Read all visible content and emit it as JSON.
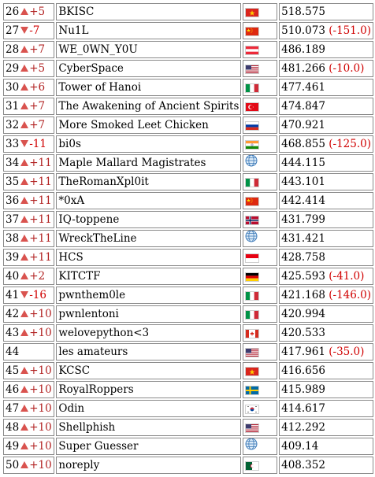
{
  "rows": [
    {
      "rank": "26",
      "dir": "up",
      "delta": "+5",
      "team": "BKISC",
      "flag": "vn-flag",
      "score": "518.575",
      "diff": ""
    },
    {
      "rank": "27",
      "dir": "down",
      "delta": "-7",
      "team": "Nu1L",
      "flag": "cn-flag",
      "score": "510.073",
      "diff": "(-151.0)"
    },
    {
      "rank": "28",
      "dir": "up",
      "delta": "+7",
      "team": "WE_0WN_Y0U",
      "flag": "at-flag",
      "score": "486.189",
      "diff": ""
    },
    {
      "rank": "29",
      "dir": "up",
      "delta": "+5",
      "team": "CyberSpace",
      "flag": "us-flag",
      "score": "481.266",
      "diff": "(-10.0)"
    },
    {
      "rank": "30",
      "dir": "up",
      "delta": "+6",
      "team": "Tower of Hanoi",
      "flag": "it-flag",
      "score": "477.461",
      "diff": ""
    },
    {
      "rank": "31",
      "dir": "up",
      "delta": "+7",
      "team": "The Awakening of Ancient Spirits",
      "flag": "tr-flag",
      "score": "474.847",
      "diff": ""
    },
    {
      "rank": "32",
      "dir": "up",
      "delta": "+7",
      "team": "More Smoked Leet Chicken",
      "flag": "ru-flag",
      "score": "470.921",
      "diff": ""
    },
    {
      "rank": "33",
      "dir": "down",
      "delta": "-11",
      "team": "bi0s",
      "flag": "in-flag",
      "score": "468.855",
      "diff": "(-125.0)"
    },
    {
      "rank": "34",
      "dir": "up",
      "delta": "+11",
      "team": "Maple Mallard Magistrates",
      "flag": "globe-icon",
      "score": "444.115",
      "diff": ""
    },
    {
      "rank": "35",
      "dir": "up",
      "delta": "+11",
      "team": "TheRomanXpl0it",
      "flag": "it-flag",
      "score": "443.101",
      "diff": ""
    },
    {
      "rank": "36",
      "dir": "up",
      "delta": "+11",
      "team": "*0xA",
      "flag": "cn-flag",
      "score": "442.414",
      "diff": ""
    },
    {
      "rank": "37",
      "dir": "up",
      "delta": "+11",
      "team": "IQ-toppene",
      "flag": "no-flag",
      "score": "431.799",
      "diff": ""
    },
    {
      "rank": "38",
      "dir": "up",
      "delta": "+11",
      "team": "WreckTheLine",
      "flag": "globe-icon",
      "score": "431.421",
      "diff": ""
    },
    {
      "rank": "39",
      "dir": "up",
      "delta": "+11",
      "team": "HCS",
      "flag": "id-flag",
      "score": "428.758",
      "diff": ""
    },
    {
      "rank": "40",
      "dir": "up",
      "delta": "+2",
      "team": "KITCTF",
      "flag": "de-flag",
      "score": "425.593",
      "diff": "(-41.0)"
    },
    {
      "rank": "41",
      "dir": "down",
      "delta": "-16",
      "team": "pwnthem0le",
      "flag": "it-flag",
      "score": "421.168",
      "diff": "(-146.0)"
    },
    {
      "rank": "42",
      "dir": "up",
      "delta": "+10",
      "team": "pwnlentoni",
      "flag": "it-flag",
      "score": "420.994",
      "diff": ""
    },
    {
      "rank": "43",
      "dir": "up",
      "delta": "+10",
      "team": "welovepython<3",
      "flag": "ca-flag",
      "score": "420.533",
      "diff": ""
    },
    {
      "rank": "44",
      "dir": "none",
      "delta": "",
      "team": "les amateurs",
      "flag": "us-flag",
      "score": "417.961",
      "diff": "(-35.0)"
    },
    {
      "rank": "45",
      "dir": "up",
      "delta": "+10",
      "team": "KCSC",
      "flag": "vn-flag",
      "score": "416.656",
      "diff": ""
    },
    {
      "rank": "46",
      "dir": "up",
      "delta": "+10",
      "team": "RoyalRoppers",
      "flag": "se-flag",
      "score": "415.989",
      "diff": ""
    },
    {
      "rank": "47",
      "dir": "up",
      "delta": "+10",
      "team": "Odin",
      "flag": "kr-flag",
      "score": "414.617",
      "diff": ""
    },
    {
      "rank": "48",
      "dir": "up",
      "delta": "+10",
      "team": "Shellphish",
      "flag": "us-flag",
      "score": "412.292",
      "diff": ""
    },
    {
      "rank": "49",
      "dir": "up",
      "delta": "+10",
      "team": "Super Guesser",
      "flag": "globe-icon",
      "score": "409.14",
      "diff": ""
    },
    {
      "rank": "50",
      "dir": "up",
      "delta": "+10",
      "team": "noreply",
      "flag": "dz-flag",
      "score": "408.352",
      "diff": ""
    }
  ],
  "colors": {
    "trend_arrow": "#d9534f",
    "penalty_text": "#d00000",
    "cell_border": "#8a8a8a"
  }
}
